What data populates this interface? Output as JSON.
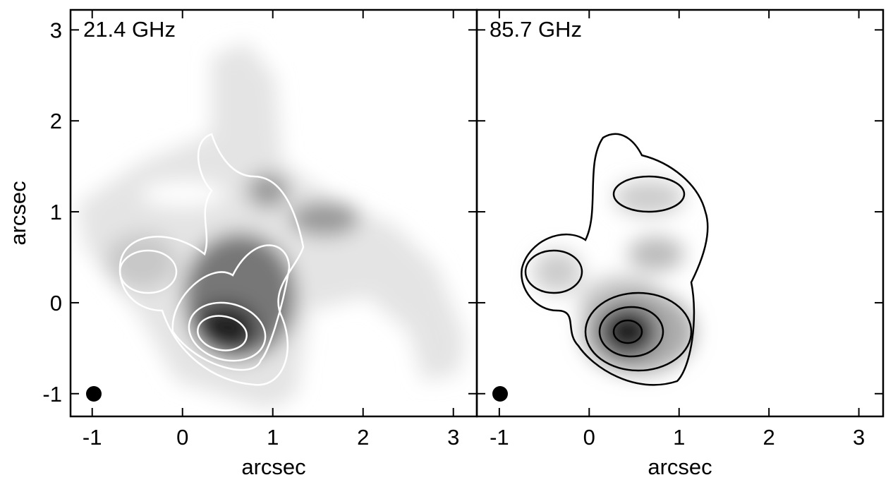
{
  "chart_data": [
    {
      "type": "image",
      "title": "21.4 GHz",
      "xlabel": "arcsec",
      "ylabel": "arcsec",
      "xlim": [
        -1.24,
        3.26
      ],
      "ylim": [
        -1.25,
        3.22
      ],
      "xticks": [
        -1,
        0,
        1,
        2,
        3
      ],
      "yticks": [
        -1,
        0,
        1,
        2,
        3
      ],
      "ytick_labels": true
    },
    {
      "type": "image",
      "title": "85.7 GHz",
      "xlabel": "arcsec",
      "xlim": [
        -1.25,
        3.27
      ],
      "ylim": [
        -1.25,
        3.22
      ],
      "xticks": [
        -1,
        0,
        1,
        2,
        3
      ],
      "yticks": [
        -1,
        0,
        1,
        2,
        3
      ],
      "ytick_labels": false
    }
  ]
}
